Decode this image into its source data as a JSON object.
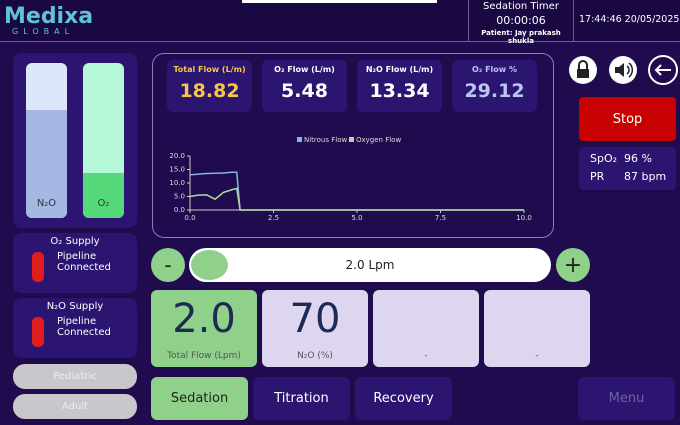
{
  "header": {
    "logo_name": "Medixa",
    "logo_sub": "GLOBAL",
    "timer_title": "Sedation Timer",
    "timer": "00:00:06",
    "patient": "Patient: Jay prakash shukla",
    "datetime": "17:44:46 20/05/2025"
  },
  "gauges": [
    {
      "label": "N₂O"
    },
    {
      "label": "O₂"
    }
  ],
  "supplies": [
    {
      "title": "O₂ Supply",
      "status": "Pipeline Connected"
    },
    {
      "title": "N₂O Supply",
      "status": "Pipeline Connected"
    }
  ],
  "modes": [
    "Pediatric",
    "Adult"
  ],
  "stats": [
    {
      "label": "Total Flow (L/m)",
      "value": "18.82"
    },
    {
      "label": "O₂ Flow (L/m)",
      "value": "5.48"
    },
    {
      "label": "N₂O Flow (L/m)",
      "value": "13.34"
    },
    {
      "label": "O₂ Flow %",
      "value": "29.12"
    }
  ],
  "chart_data": {
    "type": "line",
    "x": [
      0,
      0.25,
      0.5,
      0.75,
      1,
      1.25,
      1.4,
      1.5,
      10
    ],
    "series": [
      {
        "name": "Nitrous Flow",
        "color": "#8ab4e0",
        "values": [
          13,
          13.3,
          13.5,
          13.6,
          13.7,
          14,
          14,
          0,
          0
        ]
      },
      {
        "name": "Oxygen Flow",
        "color": "#b5d99c",
        "values": [
          5,
          5.5,
          5.6,
          4,
          6.5,
          7.5,
          8,
          0,
          0
        ]
      }
    ],
    "xlim": [
      0,
      10
    ],
    "xticks": [
      {
        "value": 0,
        "label": "0.0"
      },
      2.5,
      {
        "value": 5,
        "label": "5.0"
      },
      7.5,
      {
        "value": 10,
        "label": "10.0"
      }
    ],
    "ylim": [
      0,
      20
    ],
    "yticks": [
      {
        "value": 0,
        "label": "0.0"
      },
      {
        "value": 5,
        "label": "5.0"
      },
      {
        "value": 10,
        "label": "10.0"
      },
      {
        "value": 15,
        "label": "15.0"
      },
      {
        "value": 20,
        "label": "20.0"
      }
    ]
  },
  "slider": {
    "minus": "-",
    "value": "2.0 Lpm",
    "plus": "+"
  },
  "cards": [
    {
      "value": "2.0",
      "label": "Total Flow (Lpm)"
    },
    {
      "value": "70",
      "label": "N₂O (%)"
    },
    {
      "value": "",
      "label": "-"
    },
    {
      "value": "",
      "label": "-"
    }
  ],
  "tabs": [
    "Sedation",
    "Titration",
    "Recovery"
  ],
  "menu": "Menu",
  "stop": "Stop",
  "vitals": {
    "spo2_label": "SpO₂",
    "spo2": "96 %",
    "pr_label": "PR",
    "pr": "87 bpm"
  }
}
